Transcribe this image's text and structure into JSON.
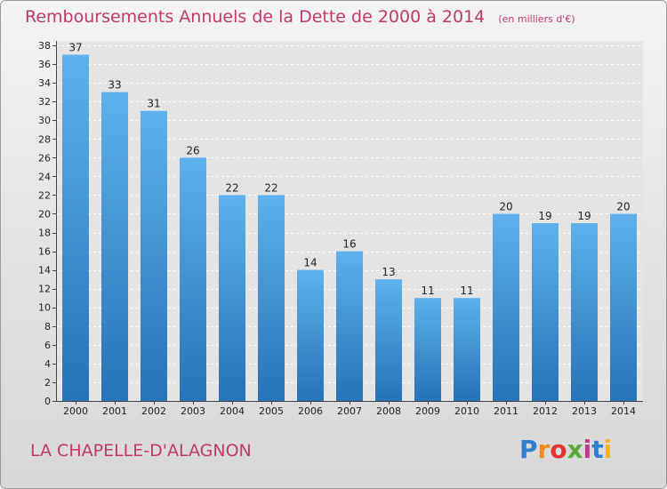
{
  "chart_data": {
    "type": "bar",
    "title": "Remboursements Annuels de la Dette de 2000 à 2014",
    "subtitle": "(en milliers d'€)",
    "categories": [
      "2000",
      "2001",
      "2002",
      "2003",
      "2004",
      "2005",
      "2006",
      "2007",
      "2008",
      "2009",
      "2010",
      "2011",
      "2012",
      "2013",
      "2014"
    ],
    "values": [
      37,
      33,
      31,
      26,
      22,
      22,
      14,
      16,
      13,
      11,
      11,
      20,
      19,
      19,
      20
    ],
    "ylim": [
      0,
      38
    ],
    "ytick_step": 2,
    "grid": true,
    "bar_color": "#3a8fd6",
    "xlabel": "",
    "ylabel": ""
  },
  "footer": {
    "municipality": "LA CHAPELLE-D'ALAGNON"
  },
  "logo": {
    "letters": [
      "P",
      "r",
      "o",
      "x",
      "i",
      "t",
      "i"
    ],
    "colors": [
      "#2f7fd0",
      "#f28a1e",
      "#e4352f",
      "#5aa83a",
      "#c13a8f",
      "#2f7fd0",
      "#f2b21e"
    ]
  }
}
